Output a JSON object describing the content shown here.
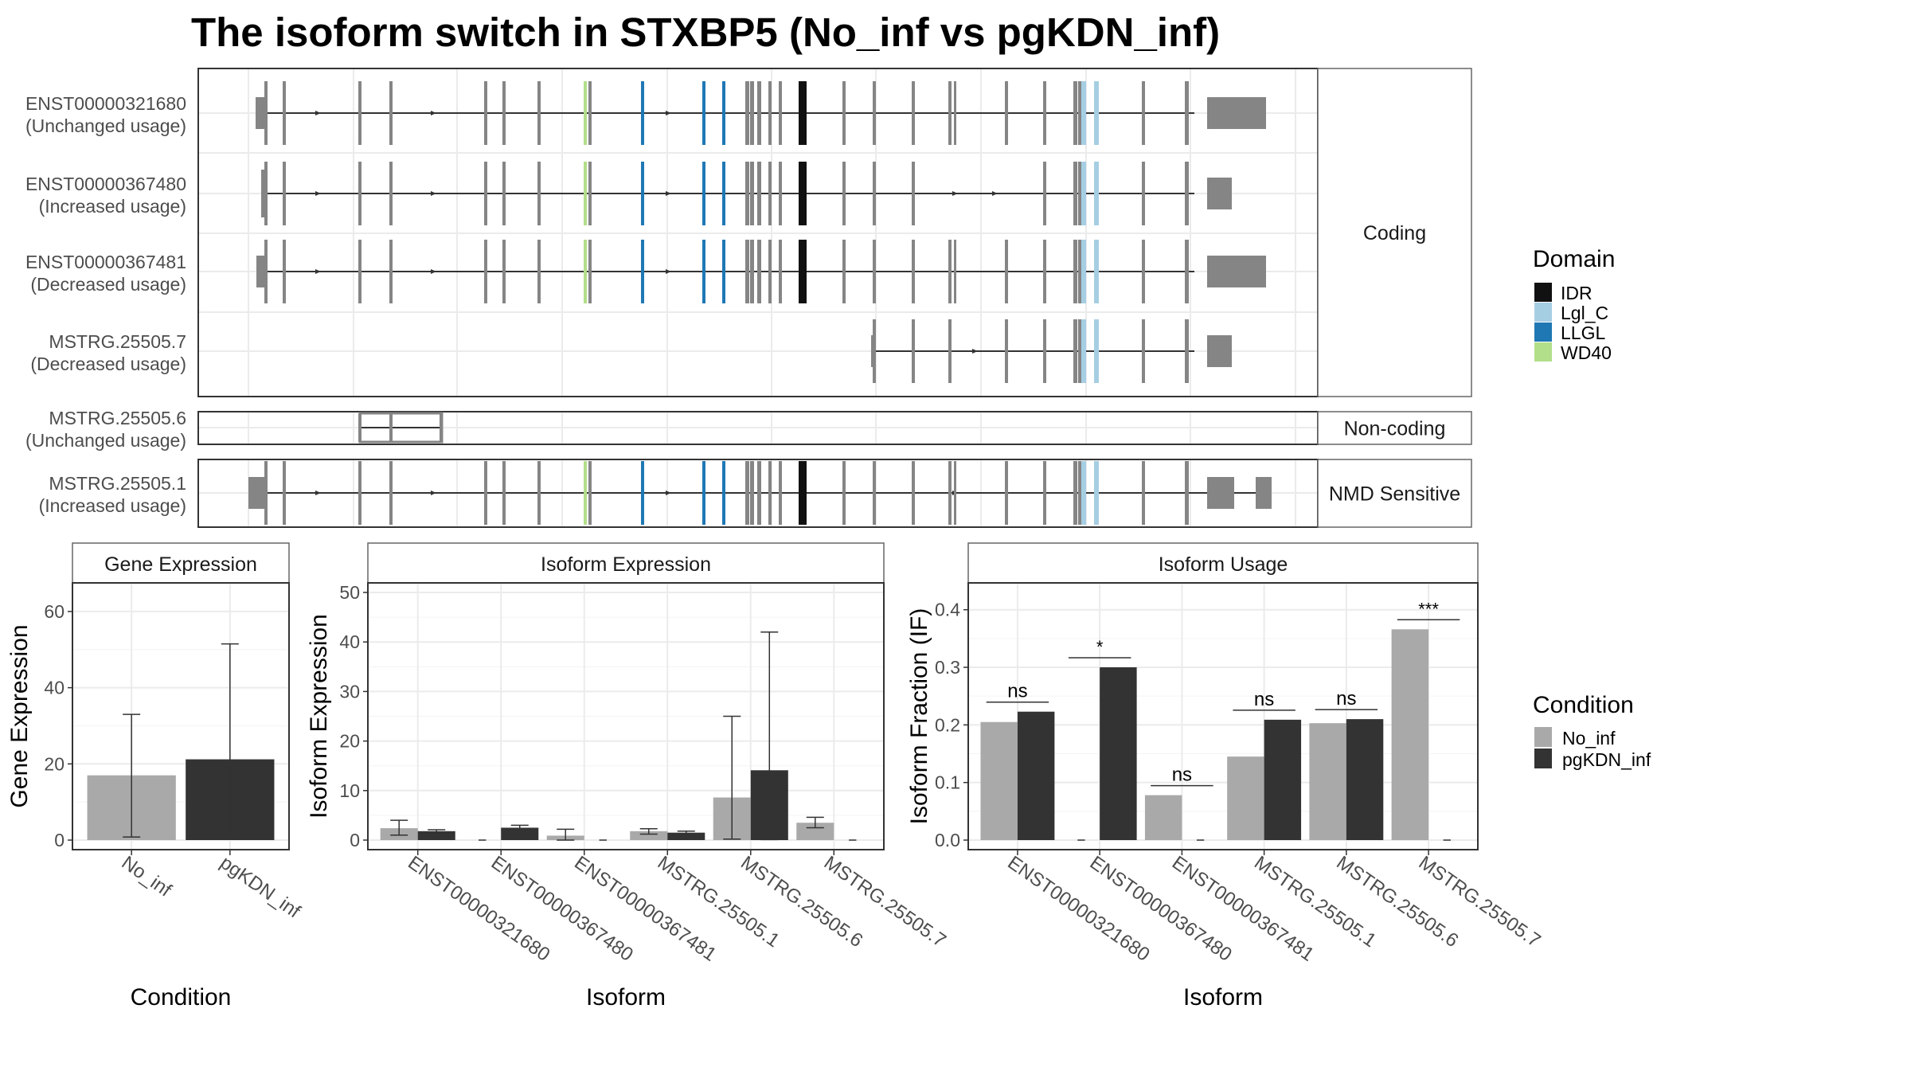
{
  "title": "The isoform switch in STXBP5 (No_inf vs pgKDN_inf)",
  "legend_domain": {
    "title": "Domain",
    "items": [
      {
        "label": "IDR",
        "color": "#111111"
      },
      {
        "label": "Lgl_C",
        "color": "#a6cee3"
      },
      {
        "label": "LLGL",
        "color": "#1f78b4"
      },
      {
        "label": "WD40",
        "color": "#b2df8a"
      }
    ]
  },
  "legend_condition": {
    "title": "Condition",
    "items": [
      {
        "label": "No_inf",
        "color": "#a9a9a9"
      },
      {
        "label": "pgKDN_inf",
        "color": "#333333"
      }
    ]
  },
  "structure_panels": [
    {
      "strip": "Coding",
      "isoforms": [
        {
          "id": "ENST00000321680",
          "usage": "(Unchanged usage)"
        },
        {
          "id": "ENST00000367480",
          "usage": "(Increased usage)"
        },
        {
          "id": "ENST00000367481",
          "usage": "(Decreased usage)"
        },
        {
          "id": "MSTRG.25505.7",
          "usage": "(Decreased usage)"
        }
      ]
    },
    {
      "strip": "Non-coding",
      "isoforms": [
        {
          "id": "MSTRG.25505.6",
          "usage": "(Unchanged usage)"
        }
      ]
    },
    {
      "strip": "NMD Sensitive",
      "isoforms": [
        {
          "id": "MSTRG.25505.1",
          "usage": "(Increased usage)"
        }
      ]
    }
  ],
  "chart_data": [
    {
      "type": "bar",
      "title": "Gene Expression",
      "xlabel": "Condition",
      "ylabel": "Gene Expression",
      "ylim": [
        0,
        65
      ],
      "yticks": [
        0,
        20,
        40,
        60
      ],
      "categories": [
        "No_inf",
        "pgKDN_inf"
      ],
      "series": [
        {
          "name": "Condition",
          "values": [
            17,
            21.2
          ],
          "error_low": [
            0.8,
            0.3
          ],
          "error_high": [
            33,
            51.5
          ]
        }
      ]
    },
    {
      "type": "bar",
      "title": "Isoform Expression",
      "xlabel": "Isoform",
      "ylabel": "Isoform Expression",
      "ylim": [
        0,
        50
      ],
      "yticks": [
        0,
        10,
        20,
        30,
        40,
        50
      ],
      "categories": [
        "ENST00000321680",
        "ENST00000367480",
        "ENST00000367481",
        "MSTRG.25505.1",
        "MSTRG.25505.6",
        "MSTRG.25505.7"
      ],
      "series": [
        {
          "name": "No_inf",
          "values": [
            2.4,
            0.0,
            0.9,
            1.8,
            8.6,
            3.5
          ],
          "error_low": [
            1.0,
            0.0,
            0.0,
            1.2,
            0.2,
            2.5
          ],
          "error_high": [
            4.0,
            0.0,
            2.2,
            2.3,
            25,
            4.6
          ]
        },
        {
          "name": "pgKDN_inf",
          "values": [
            1.8,
            2.5,
            0.0,
            1.5,
            14.1,
            0.0
          ],
          "error_low": [
            1.5,
            2.0,
            0.0,
            1.2,
            0.1,
            0.0
          ],
          "error_high": [
            2.1,
            3.0,
            0.0,
            1.8,
            42,
            0.0
          ]
        }
      ]
    },
    {
      "type": "bar",
      "title": "Isoform Usage",
      "xlabel": "Isoform",
      "ylabel": "Isoform Fraction (IF)",
      "ylim": [
        0,
        0.43
      ],
      "yticks": [
        0.0,
        0.1,
        0.2,
        0.3,
        0.4
      ],
      "categories": [
        "ENST00000321680",
        "ENST00000367480",
        "ENST00000367481",
        "MSTRG.25505.1",
        "MSTRG.25505.6",
        "MSTRG.25505.7"
      ],
      "series": [
        {
          "name": "No_inf",
          "values": [
            0.205,
            0.0,
            0.078,
            0.145,
            0.203,
            0.366
          ]
        },
        {
          "name": "pgKDN_inf",
          "values": [
            0.223,
            0.3,
            0.0,
            0.209,
            0.21,
            0.0
          ]
        }
      ],
      "significance": [
        "ns",
        "*",
        "ns",
        "ns",
        "ns",
        "***"
      ]
    }
  ]
}
